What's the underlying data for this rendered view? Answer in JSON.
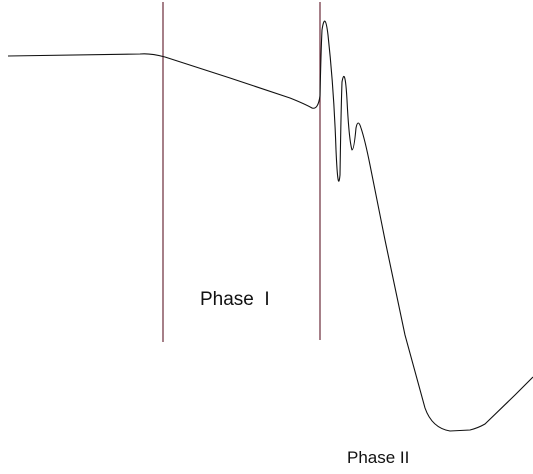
{
  "diagram": {
    "labels": {
      "phase_1": "Phase  I",
      "phase_2": "Phase II"
    },
    "colors": {
      "curve": "#111111",
      "divider": "#6b2b3a",
      "background": "#ffffff"
    }
  }
}
